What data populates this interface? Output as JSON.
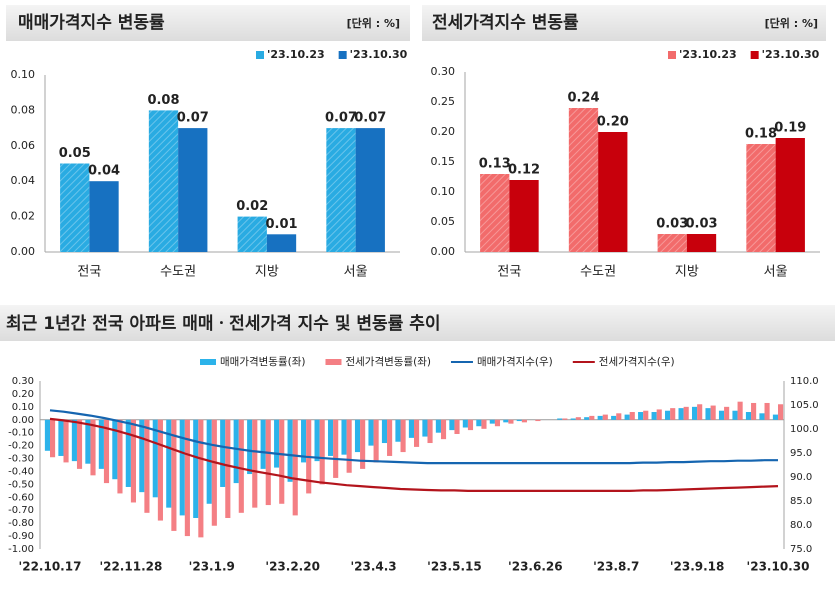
{
  "chart_data": [
    {
      "type": "bar",
      "title": "매매가격지수 변동률",
      "unit_label": "[단위 : %]",
      "categories": [
        "전국",
        "수도권",
        "지방",
        "서울"
      ],
      "series": [
        {
          "name": "'23.10.23",
          "color": "#29abe2",
          "hatch": true,
          "values": [
            0.05,
            0.08,
            0.02,
            0.07
          ]
        },
        {
          "name": "'23.10.30",
          "color": "#1771c1",
          "values": [
            0.04,
            0.07,
            0.01,
            0.07
          ]
        }
      ],
      "ylim": [
        0,
        0.1
      ],
      "yticks": [
        {
          "value": 0,
          "label": "0.00"
        },
        {
          "value": 0.02,
          "label": "0.02"
        },
        {
          "value": 0.04,
          "label": "0.04"
        },
        {
          "value": 0.06,
          "label": "0.06"
        },
        {
          "value": 0.08,
          "label": "0.08"
        },
        {
          "value": 0.1,
          "label": "0.10"
        }
      ]
    },
    {
      "type": "bar",
      "title": "전세가격지수 변동률",
      "unit_label": "[단위 : %]",
      "categories": [
        "전국",
        "수도권",
        "지방",
        "서울"
      ],
      "series": [
        {
          "name": "'23.10.23",
          "color": "#f26b6b",
          "hatch": true,
          "values": [
            0.13,
            0.24,
            0.03,
            0.18
          ]
        },
        {
          "name": "'23.10.30",
          "color": "#c8000c",
          "values": [
            0.12,
            0.2,
            0.03,
            0.19
          ],
          "value_labels": [
            "0.12",
            "0.20",
            "0.03",
            "0.19"
          ]
        }
      ],
      "ylim": [
        0,
        0.3
      ],
      "yticks": [
        {
          "value": 0,
          "label": "0.00"
        },
        {
          "value": 0.05,
          "label": "0.05"
        },
        {
          "value": 0.1,
          "label": "0.10"
        },
        {
          "value": 0.15,
          "label": "0.15"
        },
        {
          "value": 0.2,
          "label": "0.20"
        },
        {
          "value": 0.25,
          "label": "0.25"
        },
        {
          "value": 0.3,
          "label": "0.30"
        }
      ]
    },
    {
      "type": "combo",
      "title": "최근 1년간 전국 아파트 매매ㆍ전세가격 지수 및 변동률 추이",
      "categories": [
        "'22.10.17",
        null,
        null,
        null,
        null,
        null,
        "'22.11.28",
        null,
        null,
        null,
        null,
        null,
        "'23.1.9",
        null,
        null,
        null,
        null,
        null,
        "'23.2.20",
        null,
        null,
        null,
        null,
        null,
        "'23.4.3",
        null,
        null,
        null,
        null,
        null,
        "'23.5.15",
        null,
        null,
        null,
        null,
        null,
        "'23.6.26",
        null,
        null,
        null,
        null,
        null,
        "'23.8.7",
        null,
        null,
        null,
        null,
        null,
        "'23.9.18",
        null,
        null,
        null,
        null,
        null,
        "'23.10.30"
      ],
      "series": [
        {
          "name": "매매가격변동률(좌)",
          "kind": "bar",
          "color": "#2cb3ea",
          "values": [
            -0.24,
            -0.28,
            -0.32,
            -0.34,
            -0.38,
            -0.46,
            -0.52,
            -0.56,
            -0.6,
            -0.68,
            -0.74,
            -0.76,
            -0.65,
            -0.52,
            -0.49,
            -0.42,
            -0.38,
            -0.37,
            -0.48,
            -0.33,
            -0.32,
            -0.28,
            -0.27,
            -0.25,
            -0.2,
            -0.18,
            -0.17,
            -0.14,
            -0.13,
            -0.1,
            -0.08,
            -0.06,
            -0.05,
            -0.03,
            -0.02,
            -0.01,
            0,
            0,
            0.01,
            0.01,
            0.02,
            0.03,
            0.03,
            0.04,
            0.06,
            0.06,
            0.07,
            0.09,
            0.1,
            0.09,
            0.07,
            0.07,
            0.06,
            0.05,
            0.04
          ]
        },
        {
          "name": "전세가격변동률(좌)",
          "kind": "bar",
          "color": "#f47f84",
          "values": [
            -0.29,
            -0.33,
            -0.38,
            -0.43,
            -0.49,
            -0.57,
            -0.64,
            -0.72,
            -0.78,
            -0.86,
            -0.9,
            -0.91,
            -0.82,
            -0.76,
            -0.72,
            -0.68,
            -0.66,
            -0.65,
            -0.74,
            -0.57,
            -0.5,
            -0.45,
            -0.41,
            -0.38,
            -0.33,
            -0.28,
            -0.25,
            -0.21,
            -0.18,
            -0.15,
            -0.11,
            -0.08,
            -0.07,
            -0.05,
            -0.03,
            -0.02,
            -0.01,
            0,
            0.01,
            0.02,
            0.03,
            0.04,
            0.05,
            0.06,
            0.07,
            0.08,
            0.09,
            0.1,
            0.12,
            0.11,
            0.1,
            0.14,
            0.13,
            0.13,
            0.12
          ]
        },
        {
          "name": "매매가격지수(우)",
          "kind": "line",
          "axis": "y2",
          "color": "#1565b0",
          "values": [
            103.9,
            103.6,
            103.2,
            102.8,
            102.3,
            101.7,
            101.1,
            100.4,
            99.6,
            98.8,
            98.0,
            97.3,
            96.7,
            96.2,
            95.8,
            95.4,
            95.1,
            94.8,
            94.5,
            94.2,
            94.0,
            93.8,
            93.6,
            93.4,
            93.3,
            93.2,
            93.1,
            93.0,
            92.9,
            92.9,
            92.9,
            92.9,
            92.9,
            92.9,
            92.9,
            92.9,
            92.9,
            92.9,
            92.9,
            92.9,
            92.9,
            92.9,
            92.9,
            92.9,
            93.0,
            93.0,
            93.1,
            93.1,
            93.2,
            93.3,
            93.3,
            93.4,
            93.4,
            93.5,
            93.5
          ]
        },
        {
          "name": "전세가격지수(우)",
          "kind": "line",
          "axis": "y2",
          "color": "#b3141c",
          "values": [
            102.1,
            101.8,
            101.4,
            100.9,
            100.3,
            99.6,
            98.8,
            97.9,
            96.9,
            95.9,
            94.9,
            94.0,
            93.2,
            92.5,
            91.9,
            91.3,
            90.8,
            90.3,
            89.7,
            89.3,
            88.9,
            88.6,
            88.3,
            88.1,
            87.9,
            87.7,
            87.5,
            87.4,
            87.3,
            87.2,
            87.2,
            87.1,
            87.1,
            87.1,
            87.1,
            87.1,
            87.1,
            87.1,
            87.1,
            87.1,
            87.1,
            87.1,
            87.1,
            87.1,
            87.2,
            87.2,
            87.3,
            87.4,
            87.5,
            87.6,
            87.7,
            87.8,
            87.9,
            88.0,
            88.1
          ]
        }
      ],
      "ylim": [
        -1,
        0.3
      ],
      "yticks": [
        {
          "value": -1,
          "label": "-1.00"
        },
        {
          "value": -0.9,
          "label": "-0.90"
        },
        {
          "value": -0.8,
          "label": "-0.80"
        },
        {
          "value": -0.7,
          "label": "-0.70"
        },
        {
          "value": -0.6,
          "label": "-0.60"
        },
        {
          "value": -0.5,
          "label": "-0.50"
        },
        {
          "value": -0.4,
          "label": "-0.40"
        },
        {
          "value": -0.3,
          "label": "-0.30"
        },
        {
          "value": -0.2,
          "label": "-0.20"
        },
        {
          "value": -0.1,
          "label": "-0.10"
        },
        {
          "value": 0,
          "label": "0.00"
        },
        {
          "value": 0.1,
          "label": "0.10"
        },
        {
          "value": 0.2,
          "label": "0.20"
        },
        {
          "value": 0.3,
          "label": "0.30"
        }
      ],
      "y2lim": [
        75,
        110
      ],
      "y2ticks": [
        {
          "value": 75,
          "label": "75.0"
        },
        {
          "value": 80,
          "label": "80.0"
        },
        {
          "value": 85,
          "label": "85.0"
        },
        {
          "value": 90,
          "label": "90.0"
        },
        {
          "value": 95,
          "label": "95.0"
        },
        {
          "value": 100,
          "label": "100.0"
        },
        {
          "value": 105,
          "label": "105.0"
        },
        {
          "value": 110,
          "label": "110.0"
        }
      ]
    }
  ]
}
